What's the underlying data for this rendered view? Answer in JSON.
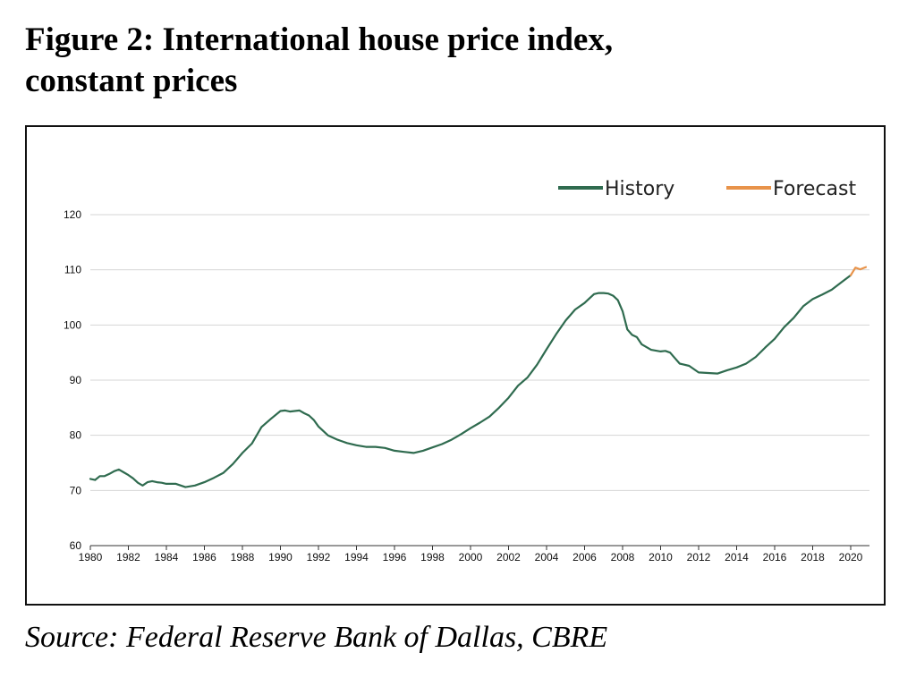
{
  "title_lines": [
    "Figure 2: International house price index,",
    "constant prices"
  ],
  "source": "Source: Federal Reserve Bank of Dallas, CBRE",
  "colors": {
    "history": "#2f6b4f",
    "forecast": "#e8934a",
    "grid": "#d4d4d4",
    "axis": "#333333"
  },
  "chart_data": {
    "type": "line",
    "title": "",
    "xlabel": "",
    "ylabel": "",
    "xlim": [
      1980,
      2020.8
    ],
    "ylim": [
      60,
      120
    ],
    "y_ticks": [
      60,
      70,
      80,
      90,
      100,
      110,
      120
    ],
    "x_ticks": [
      1980,
      1982,
      1984,
      1986,
      1988,
      1990,
      1992,
      1994,
      1996,
      1998,
      2000,
      2002,
      2004,
      2006,
      2008,
      2010,
      2012,
      2014,
      2016,
      2018,
      2020
    ],
    "grid": "horizontal",
    "legend": "top-right",
    "series": [
      {
        "name": "History",
        "x": [
          1980,
          1980.25,
          1980.5,
          1980.75,
          1981,
          1981.25,
          1981.5,
          1981.75,
          1982,
          1982.25,
          1982.5,
          1982.75,
          1983,
          1983.25,
          1983.5,
          1983.75,
          1984,
          1984.5,
          1985,
          1985.5,
          1986,
          1986.5,
          1987,
          1987.5,
          1988,
          1988.5,
          1989,
          1989.5,
          1990,
          1990.25,
          1990.5,
          1990.75,
          1991,
          1991.25,
          1991.5,
          1991.75,
          1992,
          1992.5,
          1993,
          1993.5,
          1994,
          1994.5,
          1995,
          1995.5,
          1996,
          1996.5,
          1997,
          1997.5,
          1998,
          1998.5,
          1999,
          1999.5,
          2000,
          2000.5,
          2001,
          2001.5,
          2002,
          2002.5,
          2003,
          2003.5,
          2004,
          2004.5,
          2005,
          2005.5,
          2006,
          2006.25,
          2006.5,
          2006.75,
          2007,
          2007.25,
          2007.5,
          2007.75,
          2008,
          2008.25,
          2008.5,
          2008.75,
          2009,
          2009.5,
          2010,
          2010.25,
          2010.5,
          2010.75,
          2011,
          2011.5,
          2012,
          2012.5,
          2013,
          2013.5,
          2014,
          2014.5,
          2015,
          2015.5,
          2016,
          2016.5,
          2017,
          2017.5,
          2018,
          2018.5,
          2019,
          2019.5,
          2020
        ],
        "values": [
          72.1,
          71.9,
          72.6,
          72.6,
          73.0,
          73.5,
          73.8,
          73.3,
          72.8,
          72.2,
          71.4,
          70.9,
          71.5,
          71.7,
          71.5,
          71.4,
          71.2,
          71.2,
          70.6,
          70.9,
          71.5,
          72.3,
          73.2,
          74.8,
          76.8,
          78.5,
          81.5,
          83.0,
          84.4,
          84.5,
          84.3,
          84.4,
          84.5,
          84.0,
          83.6,
          82.8,
          81.6,
          80.0,
          79.2,
          78.6,
          78.2,
          77.9,
          77.9,
          77.7,
          77.2,
          77.0,
          76.8,
          77.2,
          77.8,
          78.4,
          79.2,
          80.2,
          81.3,
          82.3,
          83.4,
          85.0,
          86.8,
          89.0,
          90.5,
          92.8,
          95.6,
          98.3,
          100.8,
          102.8,
          104.0,
          104.8,
          105.6,
          105.8,
          105.8,
          105.7,
          105.3,
          104.5,
          102.5,
          99.2,
          98.2,
          97.8,
          96.5,
          95.5,
          95.2,
          95.3,
          95.0,
          94.0,
          93.0,
          92.6,
          91.4,
          91.3,
          91.2,
          91.8,
          92.3,
          93.0,
          94.2,
          95.9,
          97.5,
          99.6,
          101.3,
          103.4,
          104.7,
          105.5,
          106.4,
          107.7,
          109.0
        ]
      },
      {
        "name": "Forecast",
        "x": [
          2020,
          2020.25,
          2020.5,
          2020.8
        ],
        "values": [
          109.0,
          110.4,
          110.1,
          110.5
        ]
      }
    ]
  }
}
